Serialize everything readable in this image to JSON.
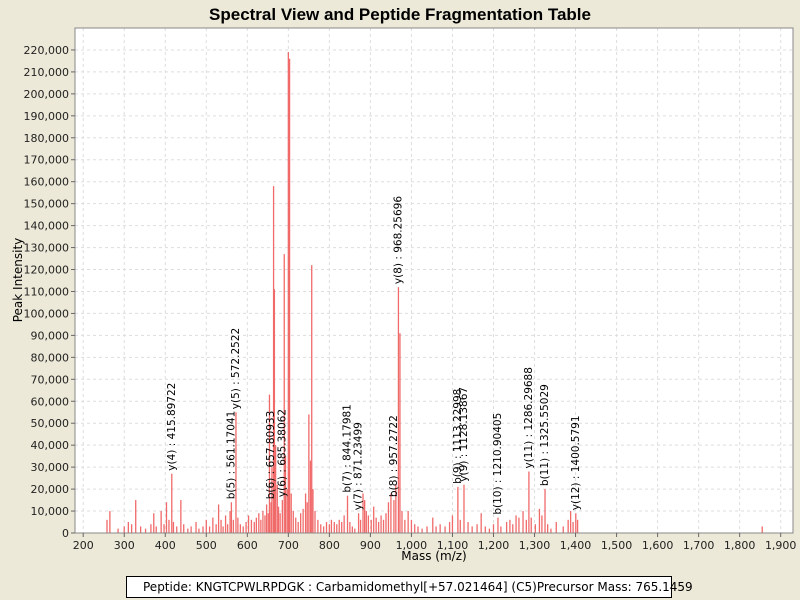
{
  "colors": {
    "peak": "#f06a6a",
    "plot_bg": "#ffffff",
    "grid": "#dddddd",
    "frame": "#888888"
  },
  "chart_data": {
    "type": "bar",
    "title": "Spectral View and Peptide Fragmentation Table",
    "xlabel": "Mass (m/z)",
    "ylabel": "Peak Intensity",
    "xlim": [
      180,
      1930
    ],
    "ylim": [
      0,
      230000
    ],
    "xticks": [
      200,
      300,
      400,
      500,
      600,
      700,
      800,
      900,
      1000,
      1100,
      1200,
      1300,
      1400,
      1500,
      1600,
      1700,
      1800,
      1900
    ],
    "xtick_labels": [
      "200",
      "300",
      "400",
      "500",
      "600",
      "700",
      "800",
      "900",
      "1,000",
      "1,100",
      "1,200",
      "1,300",
      "1,400",
      "1,500",
      "1,600",
      "1,700",
      "1,800",
      "1,900"
    ],
    "yticks": [
      0,
      10000,
      20000,
      30000,
      40000,
      50000,
      60000,
      70000,
      80000,
      90000,
      100000,
      110000,
      120000,
      130000,
      140000,
      150000,
      160000,
      170000,
      180000,
      190000,
      200000,
      210000,
      220000
    ],
    "ytick_labels": [
      "0",
      "10,000",
      "20,000",
      "30,000",
      "40,000",
      "50,000",
      "60,000",
      "70,000",
      "80,000",
      "90,000",
      "100,000",
      "110,000",
      "120,000",
      "130,000",
      "140,000",
      "150,000",
      "160,000",
      "170,000",
      "180,000",
      "190,000",
      "200,000",
      "210,000",
      "220,000"
    ],
    "grid": true,
    "peaks": [
      {
        "mz": 258,
        "i": 6000
      },
      {
        "mz": 265,
        "i": 10000
      },
      {
        "mz": 285,
        "i": 2000
      },
      {
        "mz": 300,
        "i": 3000
      },
      {
        "mz": 310,
        "i": 5000
      },
      {
        "mz": 318,
        "i": 4000
      },
      {
        "mz": 328,
        "i": 15000
      },
      {
        "mz": 340,
        "i": 3000
      },
      {
        "mz": 352,
        "i": 2000
      },
      {
        "mz": 365,
        "i": 4000
      },
      {
        "mz": 372,
        "i": 9000
      },
      {
        "mz": 378,
        "i": 3000
      },
      {
        "mz": 390,
        "i": 10000
      },
      {
        "mz": 397,
        "i": 4000
      },
      {
        "mz": 403,
        "i": 14000
      },
      {
        "mz": 409,
        "i": 6000
      },
      {
        "mz": 415.9,
        "i": 27000
      },
      {
        "mz": 420,
        "i": 5000
      },
      {
        "mz": 428,
        "i": 3000
      },
      {
        "mz": 438,
        "i": 15000
      },
      {
        "mz": 445,
        "i": 4000
      },
      {
        "mz": 455,
        "i": 2000
      },
      {
        "mz": 463,
        "i": 3000
      },
      {
        "mz": 475,
        "i": 5000
      },
      {
        "mz": 482,
        "i": 2000
      },
      {
        "mz": 492,
        "i": 3000
      },
      {
        "mz": 500,
        "i": 6000
      },
      {
        "mz": 508,
        "i": 3000
      },
      {
        "mz": 516,
        "i": 7000
      },
      {
        "mz": 524,
        "i": 4000
      },
      {
        "mz": 530,
        "i": 13000
      },
      {
        "mz": 536,
        "i": 6000
      },
      {
        "mz": 541,
        "i": 3000
      },
      {
        "mz": 547,
        "i": 8000
      },
      {
        "mz": 552,
        "i": 4000
      },
      {
        "mz": 558,
        "i": 10000
      },
      {
        "mz": 561.2,
        "i": 14000
      },
      {
        "mz": 566,
        "i": 6000
      },
      {
        "mz": 572.3,
        "i": 55000
      },
      {
        "mz": 577,
        "i": 7000
      },
      {
        "mz": 583,
        "i": 4000
      },
      {
        "mz": 590,
        "i": 3000
      },
      {
        "mz": 597,
        "i": 5000
      },
      {
        "mz": 603,
        "i": 8000
      },
      {
        "mz": 610,
        "i": 6000
      },
      {
        "mz": 617,
        "i": 5000
      },
      {
        "mz": 622,
        "i": 7000
      },
      {
        "mz": 628,
        "i": 9000
      },
      {
        "mz": 633,
        "i": 6000
      },
      {
        "mz": 638,
        "i": 10000
      },
      {
        "mz": 643,
        "i": 8000
      },
      {
        "mz": 647,
        "i": 13000
      },
      {
        "mz": 651,
        "i": 9000
      },
      {
        "mz": 654,
        "i": 63000
      },
      {
        "mz": 657.8,
        "i": 14000
      },
      {
        "mz": 660,
        "i": 30000
      },
      {
        "mz": 664,
        "i": 158000
      },
      {
        "mz": 666,
        "i": 111000
      },
      {
        "mz": 669,
        "i": 40000
      },
      {
        "mz": 673,
        "i": 22000
      },
      {
        "mz": 676,
        "i": 12000
      },
      {
        "mz": 680,
        "i": 9000
      },
      {
        "mz": 685.4,
        "i": 15000
      },
      {
        "mz": 690,
        "i": 127000
      },
      {
        "mz": 693,
        "i": 35000
      },
      {
        "mz": 697,
        "i": 20000
      },
      {
        "mz": 700,
        "i": 219000
      },
      {
        "mz": 703,
        "i": 216000
      },
      {
        "mz": 707,
        "i": 18000
      },
      {
        "mz": 712,
        "i": 10000
      },
      {
        "mz": 718,
        "i": 7000
      },
      {
        "mz": 724,
        "i": 5000
      },
      {
        "mz": 730,
        "i": 9000
      },
      {
        "mz": 736,
        "i": 11000
      },
      {
        "mz": 742,
        "i": 18000
      },
      {
        "mz": 746,
        "i": 14000
      },
      {
        "mz": 750,
        "i": 54000
      },
      {
        "mz": 754,
        "i": 33000
      },
      {
        "mz": 757,
        "i": 122000
      },
      {
        "mz": 760,
        "i": 20000
      },
      {
        "mz": 765,
        "i": 10000
      },
      {
        "mz": 772,
        "i": 6000
      },
      {
        "mz": 779,
        "i": 4000
      },
      {
        "mz": 786,
        "i": 3000
      },
      {
        "mz": 793,
        "i": 5000
      },
      {
        "mz": 800,
        "i": 4000
      },
      {
        "mz": 805,
        "i": 6000
      },
      {
        "mz": 812,
        "i": 5000
      },
      {
        "mz": 818,
        "i": 4000
      },
      {
        "mz": 824,
        "i": 6000
      },
      {
        "mz": 830,
        "i": 5000
      },
      {
        "mz": 836,
        "i": 8000
      },
      {
        "mz": 844.2,
        "i": 17000
      },
      {
        "mz": 850,
        "i": 5000
      },
      {
        "mz": 856,
        "i": 3000
      },
      {
        "mz": 862,
        "i": 2000
      },
      {
        "mz": 871.2,
        "i": 9000
      },
      {
        "mz": 876,
        "i": 6000
      },
      {
        "mz": 882,
        "i": 18000
      },
      {
        "mz": 886,
        "i": 15000
      },
      {
        "mz": 890,
        "i": 10000
      },
      {
        "mz": 895,
        "i": 8000
      },
      {
        "mz": 902,
        "i": 6000
      },
      {
        "mz": 908,
        "i": 12000
      },
      {
        "mz": 914,
        "i": 7000
      },
      {
        "mz": 920,
        "i": 5000
      },
      {
        "mz": 926,
        "i": 8000
      },
      {
        "mz": 932,
        "i": 6000
      },
      {
        "mz": 938,
        "i": 9000
      },
      {
        "mz": 944,
        "i": 14000
      },
      {
        "mz": 950,
        "i": 18000
      },
      {
        "mz": 957.3,
        "i": 15000
      },
      {
        "mz": 962,
        "i": 22000
      },
      {
        "mz": 968.3,
        "i": 112000
      },
      {
        "mz": 972,
        "i": 91000
      },
      {
        "mz": 977,
        "i": 10000
      },
      {
        "mz": 984,
        "i": 6000
      },
      {
        "mz": 992,
        "i": 10000
      },
      {
        "mz": 1000,
        "i": 6000
      },
      {
        "mz": 1008,
        "i": 4000
      },
      {
        "mz": 1016,
        "i": 3000
      },
      {
        "mz": 1026,
        "i": 2000
      },
      {
        "mz": 1038,
        "i": 3000
      },
      {
        "mz": 1052,
        "i": 7000
      },
      {
        "mz": 1060,
        "i": 3000
      },
      {
        "mz": 1070,
        "i": 4000
      },
      {
        "mz": 1082,
        "i": 3000
      },
      {
        "mz": 1093,
        "i": 5000
      },
      {
        "mz": 1100,
        "i": 8000
      },
      {
        "mz": 1113.2,
        "i": 21000
      },
      {
        "mz": 1119,
        "i": 6000
      },
      {
        "mz": 1128.1,
        "i": 22000
      },
      {
        "mz": 1138,
        "i": 5000
      },
      {
        "mz": 1148,
        "i": 3000
      },
      {
        "mz": 1160,
        "i": 4000
      },
      {
        "mz": 1170,
        "i": 9000
      },
      {
        "mz": 1180,
        "i": 3000
      },
      {
        "mz": 1190,
        "i": 2000
      },
      {
        "mz": 1200,
        "i": 4000
      },
      {
        "mz": 1210.9,
        "i": 7000
      },
      {
        "mz": 1218,
        "i": 3000
      },
      {
        "mz": 1232,
        "i": 5000
      },
      {
        "mz": 1240,
        "i": 6000
      },
      {
        "mz": 1247,
        "i": 4000
      },
      {
        "mz": 1255,
        "i": 8000
      },
      {
        "mz": 1262,
        "i": 7000
      },
      {
        "mz": 1272,
        "i": 10000
      },
      {
        "mz": 1280,
        "i": 6000
      },
      {
        "mz": 1286.3,
        "i": 28000
      },
      {
        "mz": 1292,
        "i": 7000
      },
      {
        "mz": 1302,
        "i": 4000
      },
      {
        "mz": 1312,
        "i": 11000
      },
      {
        "mz": 1318,
        "i": 8000
      },
      {
        "mz": 1325.6,
        "i": 20000
      },
      {
        "mz": 1332,
        "i": 4000
      },
      {
        "mz": 1340,
        "i": 2000
      },
      {
        "mz": 1353,
        "i": 5000
      },
      {
        "mz": 1370,
        "i": 3000
      },
      {
        "mz": 1382,
        "i": 6000
      },
      {
        "mz": 1388,
        "i": 10000
      },
      {
        "mz": 1394,
        "i": 5000
      },
      {
        "mz": 1400.6,
        "i": 9000
      },
      {
        "mz": 1405,
        "i": 6000
      },
      {
        "mz": 1855,
        "i": 3000
      }
    ],
    "annotations": [
      {
        "label": "y(4) : 415.89722",
        "mz": 415.9,
        "i": 27000
      },
      {
        "label": "b(5) : 561.17041",
        "mz": 561.2,
        "i": 14000
      },
      {
        "label": "y(5) : 572.2522",
        "mz": 572.3,
        "i": 55000
      },
      {
        "label": "b(6) : 657.80933",
        "mz": 657.8,
        "i": 14000
      },
      {
        "label": "y(6) : 685.38062",
        "mz": 685.4,
        "i": 15000
      },
      {
        "label": "b(7) : 844.17981",
        "mz": 844.2,
        "i": 17000
      },
      {
        "label": "y(7) : 871.23499",
        "mz": 871.2,
        "i": 9000
      },
      {
        "label": "b(8) : 957.2722",
        "mz": 957.3,
        "i": 15000
      },
      {
        "label": "y(8) : 968.25696",
        "mz": 968.3,
        "i": 112000
      },
      {
        "label": "b(9) : 1113.22998",
        "mz": 1113.2,
        "i": 21000
      },
      {
        "label": "y(9) : 1128.13867",
        "mz": 1128.1,
        "i": 22000
      },
      {
        "label": "b(10) : 1210.90405",
        "mz": 1210.9,
        "i": 7000
      },
      {
        "label": "y(11) : 1286.29688",
        "mz": 1286.3,
        "i": 28000
      },
      {
        "label": "b(11) : 1325.55029",
        "mz": 1325.6,
        "i": 20000
      },
      {
        "label": "y(12) : 1400.5791",
        "mz": 1400.6,
        "i": 9000
      }
    ]
  },
  "info": {
    "peptide": "Peptide: KNGTCPWLRPDGK : Carbamidomethyl[+57.021464] (C5)",
    "precursor": "Precursor Mass: 765.1459"
  }
}
